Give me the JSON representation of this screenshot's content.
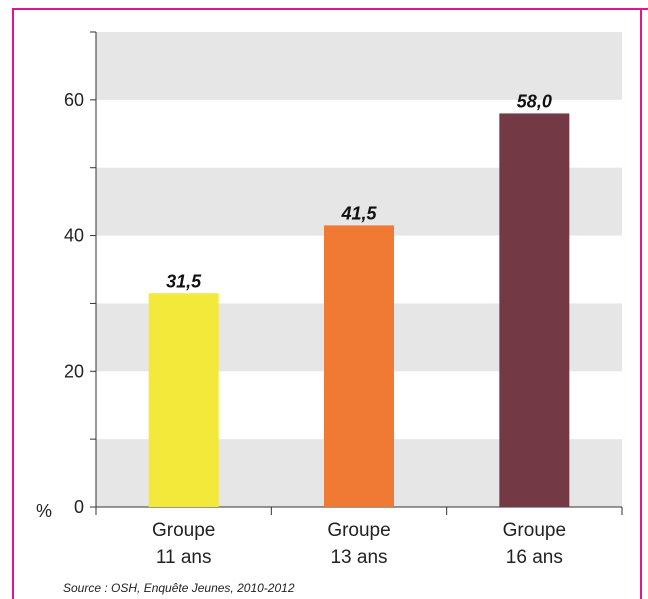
{
  "chart_data": {
    "type": "bar",
    "categories": [
      [
        "Groupe",
        "11 ans"
      ],
      [
        "Groupe",
        "13 ans"
      ],
      [
        "Groupe",
        "16 ans"
      ]
    ],
    "values": [
      31.5,
      41.5,
      58.0
    ],
    "value_labels": [
      "31,5",
      "41,5",
      "58,0"
    ],
    "bar_colors": [
      "#f2e93a",
      "#f07a33",
      "#733a45"
    ],
    "y_ticks": [
      0,
      20,
      40,
      60
    ],
    "y_tick_labels": [
      "0",
      "20",
      "40",
      "60"
    ],
    "y_unit": "%",
    "ylim": [
      0,
      70
    ],
    "grid": "alternating horizontal bands",
    "band_color": "#e6e6e6",
    "frame_color": "#e0168a"
  },
  "source": "Source : OSH, Enquête Jeunes, 2010-2012"
}
